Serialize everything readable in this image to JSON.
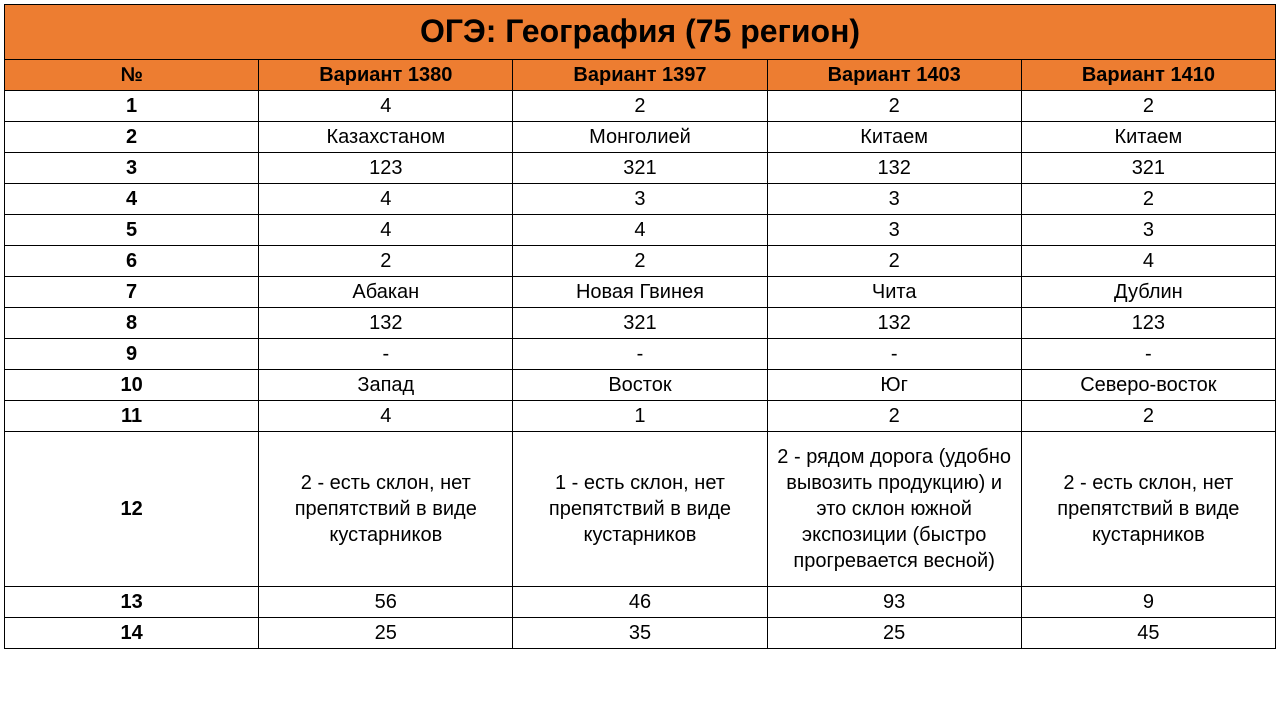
{
  "title": "ОГЭ: География (75 регион)",
  "colors": {
    "header_bg": "#ed7d31",
    "border": "#000000",
    "text": "#000000",
    "background": "#ffffff"
  },
  "typography": {
    "title_fontsize": 32,
    "header_fontsize": 20,
    "cell_fontsize": 20,
    "font_family": "Arial"
  },
  "columns": [
    "№",
    "Вариант 1380",
    "Вариант 1397",
    "Вариант 1403",
    "Вариант 1410"
  ],
  "rows": [
    {
      "num": "1",
      "cells": [
        "4",
        "2",
        "2",
        "2"
      ]
    },
    {
      "num": "2",
      "cells": [
        "Казахстаном",
        "Монголией",
        "Китаем",
        "Китаем"
      ]
    },
    {
      "num": "3",
      "cells": [
        "123",
        "321",
        "132",
        "321"
      ]
    },
    {
      "num": "4",
      "cells": [
        "4",
        "3",
        "3",
        "2"
      ]
    },
    {
      "num": "5",
      "cells": [
        "4",
        "4",
        "3",
        "3"
      ]
    },
    {
      "num": "6",
      "cells": [
        "2",
        "2",
        "2",
        "4"
      ]
    },
    {
      "num": "7",
      "cells": [
        "Абакан",
        "Новая Гвинея",
        "Чита",
        "Дублин"
      ]
    },
    {
      "num": "8",
      "cells": [
        "132",
        "321",
        "132",
        "123"
      ]
    },
    {
      "num": "9",
      "cells": [
        "-",
        "-",
        "-",
        "-"
      ]
    },
    {
      "num": "10",
      "cells": [
        "Запад",
        "Восток",
        "Юг",
        "Северо-восток"
      ]
    },
    {
      "num": "11",
      "cells": [
        "4",
        "1",
        "2",
        "2"
      ]
    },
    {
      "num": "12",
      "tall": true,
      "cells": [
        "2 - есть склон, нет препятствий в виде кустарников",
        "1 - есть склон, нет препятствий в виде кустарников",
        "2 - рядом дорога (удобно вывозить продукцию) и это склон южной экспозиции (быстро прогревается весной)",
        "2 - есть склон, нет препятствий в виде кустарников"
      ]
    },
    {
      "num": "13",
      "cells": [
        "56",
        "46",
        "93",
        "9"
      ]
    },
    {
      "num": "14",
      "cells": [
        "25",
        "35",
        "25",
        "45"
      ]
    }
  ]
}
